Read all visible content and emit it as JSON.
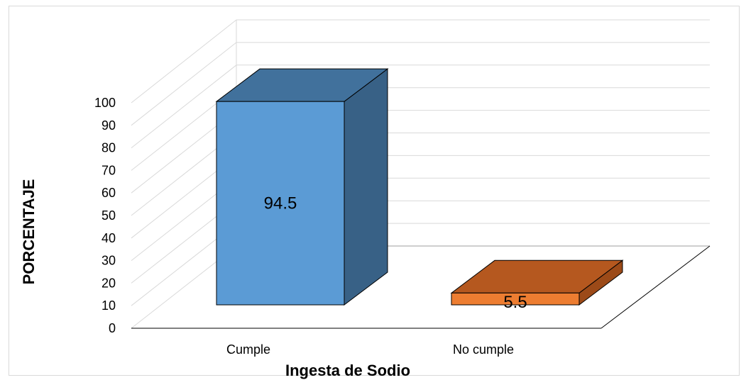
{
  "chart_data": {
    "type": "bar",
    "title": "",
    "xlabel": "Ingesta de Sodio",
    "ylabel": "PORCENTAJE",
    "categories": [
      "Cumple",
      "No cumple"
    ],
    "values": [
      94.5,
      5.5
    ],
    "data_labels": [
      "94.5",
      "5.5"
    ],
    "ylim": [
      0,
      100
    ],
    "yticks": [
      "0",
      "10",
      "20",
      "30",
      "40",
      "50",
      "60",
      "70",
      "80",
      "90",
      "100"
    ],
    "grid": true,
    "legend": "none",
    "three_d": true,
    "colors": {
      "Cumple": {
        "front": "#5b9bd5",
        "top": "#41719c",
        "side": "#386186"
      },
      "No cumple": {
        "front": "#ed7d31",
        "top": "#b5581f",
        "side": "#9c4a18"
      },
      "gridline": "#d9d9d9",
      "floor": "#000000"
    }
  }
}
